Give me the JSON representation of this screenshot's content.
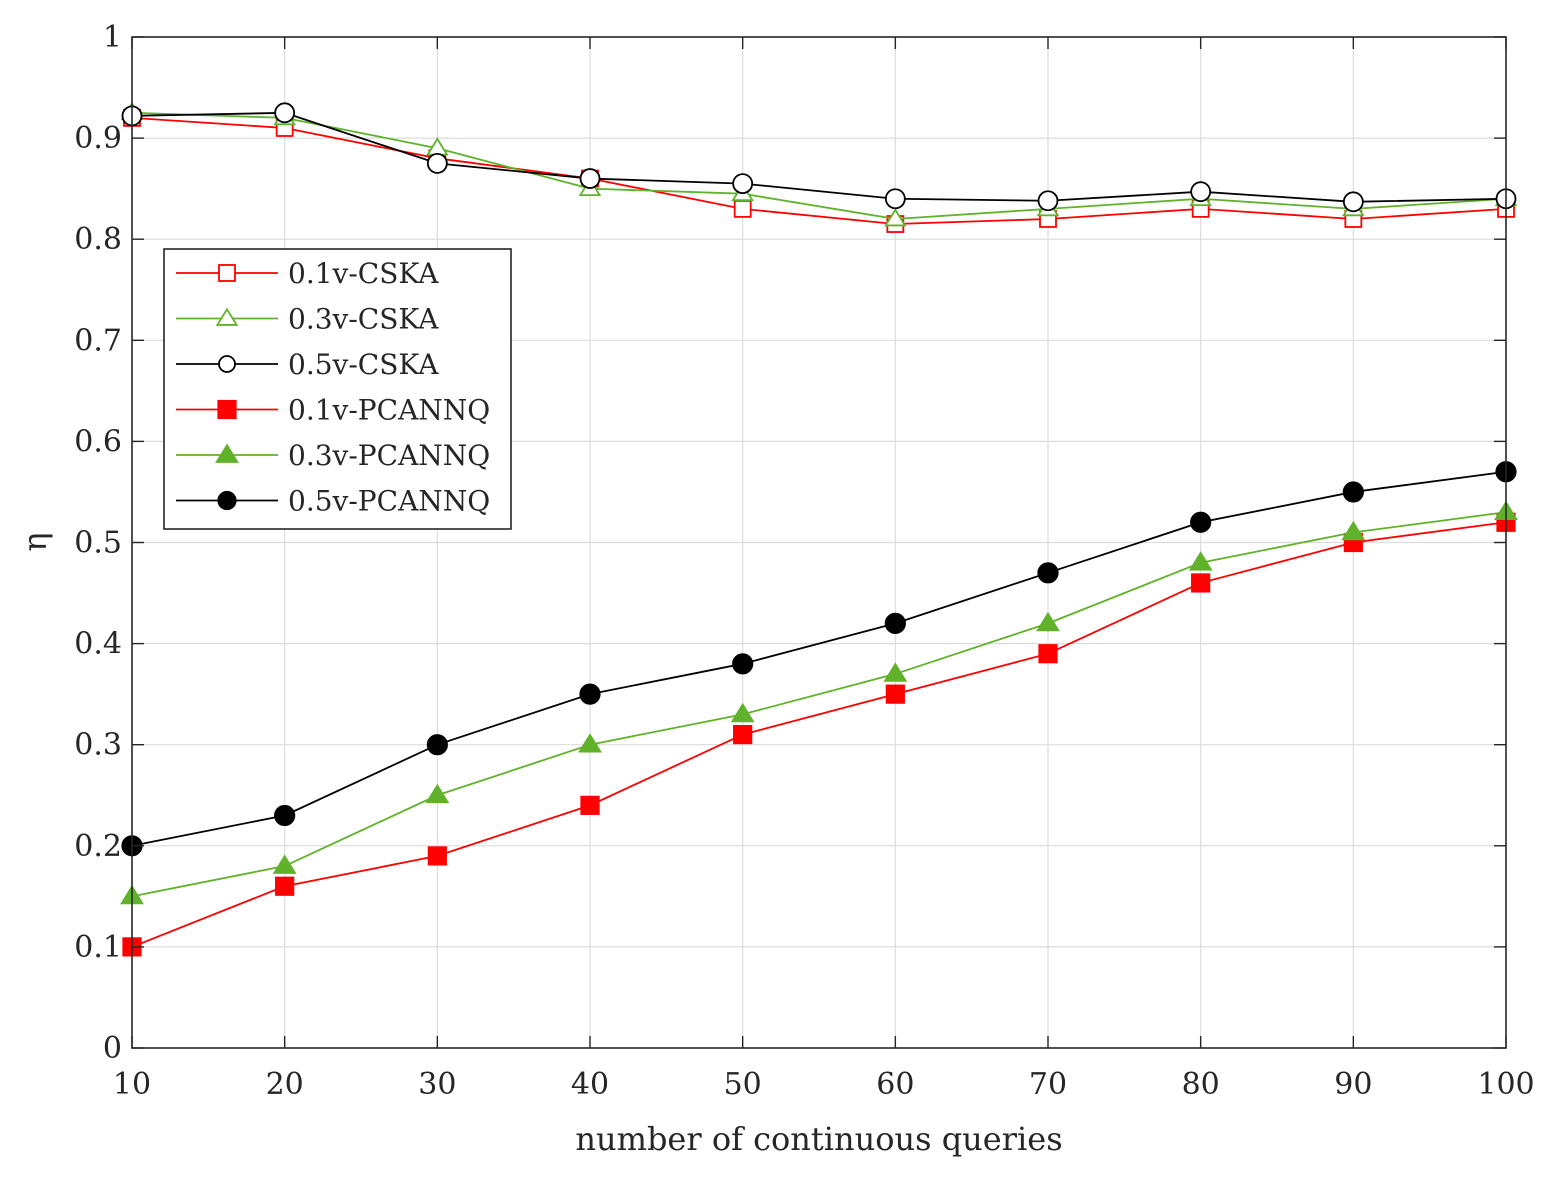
{
  "chart_data": {
    "type": "line",
    "title": "",
    "xlabel": "number of continuous queries",
    "ylabel": "η",
    "xlim": [
      10,
      100
    ],
    "ylim": [
      0,
      1
    ],
    "xticks": [
      10,
      20,
      30,
      40,
      50,
      60,
      70,
      80,
      90,
      100
    ],
    "yticks": [
      0,
      0.1,
      0.2,
      0.3,
      0.4,
      0.5,
      0.6,
      0.7,
      0.8,
      0.9,
      1
    ],
    "ytick_labels": [
      "0",
      "0.1",
      "0.2",
      "0.3",
      "0.4",
      "0.5",
      "0.6",
      "0.7",
      "0.8",
      "0.9",
      "1"
    ],
    "grid": true,
    "legend_position": "upper-left",
    "x": [
      10,
      20,
      30,
      40,
      50,
      60,
      70,
      80,
      90,
      100
    ],
    "series": [
      {
        "name": "0.1v-CSKA",
        "color": "#ff0000",
        "marker": "square",
        "filled": false,
        "values": [
          0.92,
          0.91,
          0.88,
          0.86,
          0.83,
          0.815,
          0.82,
          0.83,
          0.82,
          0.83
        ]
      },
      {
        "name": "0.3v-CSKA",
        "color": "#5fb22a",
        "marker": "triangle",
        "filled": false,
        "values": [
          0.925,
          0.92,
          0.89,
          0.85,
          0.845,
          0.82,
          0.83,
          0.84,
          0.83,
          0.84
        ]
      },
      {
        "name": "0.5v-CSKA",
        "color": "#000000",
        "marker": "circle",
        "filled": false,
        "values": [
          0.922,
          0.925,
          0.875,
          0.86,
          0.855,
          0.84,
          0.838,
          0.847,
          0.837,
          0.84
        ]
      },
      {
        "name": "0.1v-PCANNQ",
        "color": "#ff0000",
        "marker": "square",
        "filled": true,
        "values": [
          0.1,
          0.16,
          0.19,
          0.24,
          0.31,
          0.35,
          0.39,
          0.46,
          0.5,
          0.52
        ]
      },
      {
        "name": "0.3v-PCANNQ",
        "color": "#5fb22a",
        "marker": "triangle",
        "filled": true,
        "values": [
          0.15,
          0.18,
          0.25,
          0.3,
          0.33,
          0.37,
          0.42,
          0.48,
          0.51,
          0.53
        ]
      },
      {
        "name": "0.5v-PCANNQ",
        "color": "#000000",
        "marker": "circle",
        "filled": true,
        "values": [
          0.2,
          0.23,
          0.3,
          0.35,
          0.38,
          0.42,
          0.47,
          0.52,
          0.55,
          0.57
        ]
      }
    ]
  }
}
